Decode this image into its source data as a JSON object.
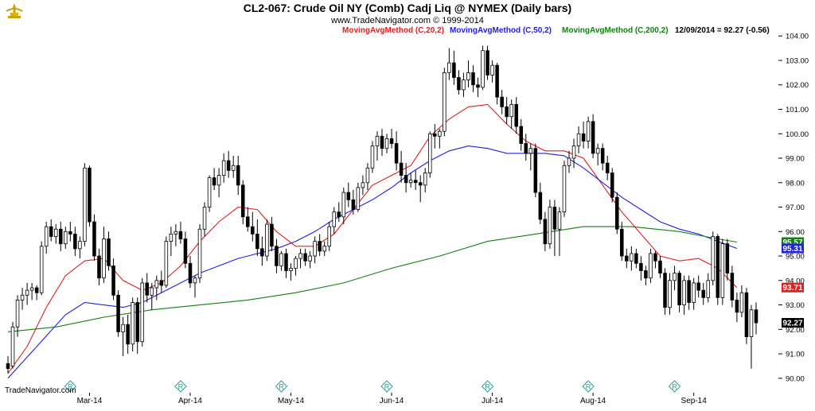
{
  "header": {
    "title": "CL2-067:  Crude Oil NY (Comb) Cadj Liq @ NYMEX  (Daily bars)",
    "copyright": "www.TradeNavigator.com © 1999-2014"
  },
  "legend": [
    {
      "label": "MovingAvgMethod (C,20,2)",
      "color": "#e02020"
    },
    {
      "label": "MovingAvgMethod (C,50,2)",
      "color": "#2020e0"
    },
    {
      "label": "MovingAvgMethod (C,200,2)",
      "color": "#108010"
    },
    {
      "label": "12/09/2014 = 92.27 (-0.56)",
      "color": "#000000"
    }
  ],
  "footer": {
    "brand": "TradeNavigator.com"
  },
  "markers": {
    "symbol": "R",
    "color": "#2aa198"
  },
  "chart_data": {
    "type": "candlestick",
    "title": "CL2-067:  Crude Oil NY (Comb) Cadj Liq @ NYMEX  (Daily bars)",
    "ylim": [
      89.8,
      104.3
    ],
    "y_ticks": [
      "90.00",
      "91.00",
      "92.00",
      "93.00",
      "94.00",
      "95.00",
      "96.00",
      "97.00",
      "98.00",
      "99.00",
      "100.00",
      "101.00",
      "102.00",
      "103.00",
      "104.00"
    ],
    "x_labels": [
      {
        "label": "Mar-14",
        "index": 17
      },
      {
        "label": "Apr-14",
        "index": 38
      },
      {
        "label": "May-14",
        "index": 59
      },
      {
        "label": "Jun-14",
        "index": 80
      },
      {
        "label": "Jul-14",
        "index": 101
      },
      {
        "label": "Aug-14",
        "index": 122
      },
      {
        "label": "Sep-14",
        "index": 143
      }
    ],
    "series": [
      {
        "name": "MovingAvgMethod (C,20,2)",
        "color": "#e02020",
        "last": 93.71,
        "values": [
          [
            0,
            90.2
          ],
          [
            4,
            91.3
          ],
          [
            8,
            92.9
          ],
          [
            12,
            94.2
          ],
          [
            16,
            94.8
          ],
          [
            20,
            94.9
          ],
          [
            24,
            94.0
          ],
          [
            28,
            93.6
          ],
          [
            32,
            93.9
          ],
          [
            36,
            94.6
          ],
          [
            40,
            95.6
          ],
          [
            44,
            96.4
          ],
          [
            48,
            97.0
          ],
          [
            52,
            96.9
          ],
          [
            56,
            96.0
          ],
          [
            60,
            95.4
          ],
          [
            64,
            95.4
          ],
          [
            68,
            95.9
          ],
          [
            72,
            96.9
          ],
          [
            76,
            97.9
          ],
          [
            80,
            98.3
          ],
          [
            84,
            98.7
          ],
          [
            88,
            99.9
          ],
          [
            92,
            100.6
          ],
          [
            96,
            101.1
          ],
          [
            100,
            101.2
          ],
          [
            104,
            100.4
          ],
          [
            108,
            99.7
          ],
          [
            112,
            99.3
          ],
          [
            116,
            99.3
          ],
          [
            120,
            99.0
          ],
          [
            124,
            97.9
          ],
          [
            128,
            96.8
          ],
          [
            132,
            95.9
          ],
          [
            136,
            95.0
          ],
          [
            140,
            94.8
          ],
          [
            144,
            94.9
          ],
          [
            148,
            94.5
          ],
          [
            152,
            93.71
          ]
        ]
      },
      {
        "name": "MovingAvgMethod (C,50,2)",
        "color": "#2020e0",
        "last": 95.31,
        "values": [
          [
            0,
            90.0
          ],
          [
            6,
            91.3
          ],
          [
            12,
            92.6
          ],
          [
            16,
            93.1
          ],
          [
            20,
            93.0
          ],
          [
            24,
            92.9
          ],
          [
            28,
            93.1
          ],
          [
            32,
            93.5
          ],
          [
            36,
            93.9
          ],
          [
            40,
            94.3
          ],
          [
            44,
            94.6
          ],
          [
            48,
            94.9
          ],
          [
            52,
            95.1
          ],
          [
            56,
            95.3
          ],
          [
            60,
            95.6
          ],
          [
            64,
            96.0
          ],
          [
            68,
            96.5
          ],
          [
            72,
            96.9
          ],
          [
            76,
            97.3
          ],
          [
            80,
            97.8
          ],
          [
            84,
            98.4
          ],
          [
            88,
            98.9
          ],
          [
            92,
            99.3
          ],
          [
            96,
            99.5
          ],
          [
            100,
            99.4
          ],
          [
            104,
            99.2
          ],
          [
            108,
            99.2
          ],
          [
            112,
            99.2
          ],
          [
            116,
            99.1
          ],
          [
            120,
            98.6
          ],
          [
            124,
            98.0
          ],
          [
            128,
            97.4
          ],
          [
            132,
            96.9
          ],
          [
            136,
            96.4
          ],
          [
            140,
            96.1
          ],
          [
            144,
            95.9
          ],
          [
            148,
            95.6
          ],
          [
            152,
            95.31
          ]
        ]
      },
      {
        "name": "MovingAvgMethod (C,200,2)",
        "color": "#108010",
        "last": 95.57,
        "values": [
          [
            0,
            91.9
          ],
          [
            10,
            92.1
          ],
          [
            20,
            92.5
          ],
          [
            30,
            92.8
          ],
          [
            40,
            93.0
          ],
          [
            50,
            93.2
          ],
          [
            60,
            93.5
          ],
          [
            70,
            93.9
          ],
          [
            80,
            94.5
          ],
          [
            90,
            95.0
          ],
          [
            100,
            95.6
          ],
          [
            110,
            95.9
          ],
          [
            120,
            96.2
          ],
          [
            130,
            96.2
          ],
          [
            140,
            96.0
          ],
          [
            148,
            95.7
          ],
          [
            152,
            95.57
          ]
        ]
      }
    ],
    "candles_ohlc": [
      [
        90.6,
        90.9,
        90.2,
        90.4
      ],
      [
        90.5,
        92.3,
        90.4,
        92.1
      ],
      [
        92.1,
        93.4,
        91.7,
        93.2
      ],
      [
        93.2,
        93.7,
        92.8,
        93.4
      ],
      [
        93.4,
        93.9,
        93.0,
        93.6
      ],
      [
        93.6,
        93.9,
        93.2,
        93.7
      ],
      [
        93.7,
        93.8,
        93.2,
        93.5
      ],
      [
        93.5,
        95.6,
        93.4,
        95.4
      ],
      [
        95.4,
        96.4,
        95.1,
        96.2
      ],
      [
        96.2,
        96.5,
        95.6,
        95.8
      ],
      [
        95.8,
        96.3,
        95.5,
        96.1
      ],
      [
        96.1,
        96.4,
        95.2,
        95.5
      ],
      [
        95.5,
        96.2,
        95.3,
        96.0
      ],
      [
        96.0,
        96.4,
        95.6,
        95.9
      ],
      [
        95.9,
        96.2,
        95.0,
        95.3
      ],
      [
        95.3,
        95.8,
        94.9,
        95.6
      ],
      [
        95.6,
        98.8,
        95.4,
        98.6
      ],
      [
        98.6,
        98.7,
        96.2,
        96.4
      ],
      [
        96.4,
        96.7,
        94.8,
        95.0
      ],
      [
        95.0,
        95.3,
        93.8,
        94.1
      ],
      [
        94.1,
        96.2,
        93.9,
        95.7
      ],
      [
        95.7,
        96.0,
        94.4,
        94.6
      ],
      [
        94.6,
        94.9,
        93.2,
        93.4
      ],
      [
        93.4,
        93.6,
        91.7,
        91.9
      ],
      [
        91.9,
        92.5,
        90.9,
        92.2
      ],
      [
        92.2,
        92.6,
        91.0,
        91.4
      ],
      [
        91.4,
        93.3,
        91.1,
        93.1
      ],
      [
        93.1,
        93.3,
        91.0,
        91.5
      ],
      [
        91.5,
        94.1,
        91.3,
        93.9
      ],
      [
        93.9,
        94.3,
        93.1,
        93.4
      ],
      [
        93.4,
        93.9,
        92.8,
        93.7
      ],
      [
        93.7,
        94.2,
        93.2,
        94.0
      ],
      [
        94.0,
        94.4,
        93.5,
        93.8
      ],
      [
        93.8,
        95.8,
        93.7,
        95.6
      ],
      [
        95.6,
        96.2,
        95.0,
        95.9
      ],
      [
        95.9,
        96.3,
        95.4,
        96.0
      ],
      [
        96.0,
        96.4,
        95.5,
        95.7
      ],
      [
        95.7,
        96.0,
        94.5,
        94.7
      ],
      [
        94.7,
        95.0,
        93.7,
        93.9
      ],
      [
        93.9,
        94.2,
        93.3,
        94.1
      ],
      [
        94.1,
        96.3,
        93.9,
        96.1
      ],
      [
        96.1,
        97.2,
        95.8,
        97.0
      ],
      [
        97.0,
        98.3,
        96.8,
        98.2
      ],
      [
        98.2,
        98.6,
        97.7,
        97.9
      ],
      [
        97.9,
        98.6,
        97.4,
        98.3
      ],
      [
        98.3,
        99.2,
        98.0,
        98.9
      ],
      [
        98.9,
        99.3,
        98.2,
        98.5
      ],
      [
        98.5,
        99.1,
        98.2,
        98.7
      ],
      [
        98.7,
        99.1,
        97.5,
        97.9
      ],
      [
        97.9,
        98.1,
        96.3,
        96.6
      ],
      [
        96.6,
        97.0,
        96.0,
        96.2
      ],
      [
        96.2,
        96.8,
        95.6,
        95.9
      ],
      [
        95.9,
        96.5,
        95.0,
        95.3
      ],
      [
        95.3,
        95.8,
        94.6,
        95.0
      ],
      [
        95.0,
        96.5,
        94.8,
        96.3
      ],
      [
        96.3,
        96.6,
        95.2,
        95.4
      ],
      [
        95.4,
        95.7,
        94.3,
        94.6
      ],
      [
        94.6,
        95.2,
        94.4,
        95.1
      ],
      [
        95.1,
        95.3,
        94.1,
        94.4
      ],
      [
        94.4,
        94.7,
        94.0,
        94.5
      ],
      [
        94.5,
        95.0,
        94.2,
        94.9
      ],
      [
        94.9,
        95.3,
        94.5,
        95.1
      ],
      [
        95.1,
        95.3,
        94.6,
        94.8
      ],
      [
        94.8,
        95.2,
        94.5,
        95.0
      ],
      [
        95.0,
        95.8,
        94.7,
        95.6
      ],
      [
        95.6,
        95.9,
        95.0,
        95.2
      ],
      [
        95.2,
        95.6,
        95.0,
        95.4
      ],
      [
        95.4,
        96.4,
        95.2,
        96.2
      ],
      [
        96.2,
        97.0,
        95.9,
        96.8
      ],
      [
        96.8,
        97.2,
        96.4,
        96.6
      ],
      [
        96.6,
        97.8,
        96.3,
        97.6
      ],
      [
        97.6,
        98.0,
        97.0,
        97.3
      ],
      [
        97.3,
        97.7,
        96.7,
        96.9
      ],
      [
        96.9,
        98.0,
        96.8,
        97.8
      ],
      [
        97.8,
        98.3,
        97.5,
        98.0
      ],
      [
        98.0,
        98.8,
        97.7,
        98.6
      ],
      [
        98.6,
        99.7,
        98.4,
        99.5
      ],
      [
        99.5,
        100.1,
        98.9,
        99.9
      ],
      [
        99.9,
        100.2,
        99.1,
        99.4
      ],
      [
        99.4,
        100.0,
        99.2,
        99.8
      ],
      [
        99.8,
        100.2,
        99.4,
        99.6
      ],
      [
        99.6,
        100.1,
        98.5,
        98.8
      ],
      [
        98.8,
        99.3,
        98.0,
        98.3
      ],
      [
        98.3,
        98.8,
        97.6,
        98.0
      ],
      [
        98.0,
        98.4,
        97.8,
        98.1
      ],
      [
        98.1,
        98.5,
        97.7,
        98.0
      ],
      [
        98.0,
        98.3,
        97.2,
        97.9
      ],
      [
        97.9,
        98.6,
        97.6,
        98.4
      ],
      [
        98.4,
        100.1,
        98.2,
        100.0
      ],
      [
        100.0,
        100.4,
        99.4,
        99.9
      ],
      [
        99.9,
        100.2,
        99.4,
        100.1
      ],
      [
        100.1,
        102.7,
        99.9,
        102.5
      ],
      [
        102.5,
        103.5,
        102.2,
        102.9
      ],
      [
        102.9,
        103.4,
        102.0,
        102.3
      ],
      [
        102.3,
        102.6,
        101.6,
        101.8
      ],
      [
        101.8,
        102.5,
        101.5,
        102.2
      ],
      [
        102.2,
        103.0,
        101.9,
        102.5
      ],
      [
        102.5,
        102.8,
        101.7,
        102.0
      ],
      [
        102.0,
        102.3,
        101.5,
        101.9
      ],
      [
        101.9,
        103.6,
        101.8,
        103.4
      ],
      [
        103.4,
        103.6,
        102.2,
        102.4
      ],
      [
        102.4,
        103.0,
        102.1,
        102.8
      ],
      [
        102.8,
        102.9,
        101.2,
        101.5
      ],
      [
        101.5,
        101.8,
        100.8,
        101.1
      ],
      [
        101.1,
        101.5,
        100.4,
        100.7
      ],
      [
        100.7,
        101.4,
        100.2,
        101.2
      ],
      [
        101.2,
        101.5,
        100.0,
        100.3
      ],
      [
        100.3,
        100.6,
        99.3,
        99.6
      ],
      [
        99.6,
        100.0,
        98.9,
        99.2
      ],
      [
        99.2,
        99.6,
        98.5,
        99.4
      ],
      [
        99.4,
        99.6,
        97.4,
        97.6
      ],
      [
        97.6,
        98.0,
        96.3,
        96.5
      ],
      [
        96.5,
        96.8,
        95.2,
        95.5
      ],
      [
        95.5,
        97.3,
        95.3,
        97.0
      ],
      [
        97.0,
        97.3,
        95.0,
        96.1
      ],
      [
        96.1,
        97.0,
        95.0,
        96.8
      ],
      [
        96.8,
        98.9,
        96.6,
        98.7
      ],
      [
        98.7,
        99.3,
        98.4,
        99.0
      ],
      [
        99.0,
        99.8,
        98.6,
        99.5
      ],
      [
        99.5,
        100.3,
        99.2,
        100.0
      ],
      [
        100.0,
        100.5,
        99.4,
        99.7
      ],
      [
        99.7,
        100.7,
        99.4,
        100.5
      ],
      [
        100.5,
        100.8,
        99.0,
        99.2
      ],
      [
        99.2,
        99.6,
        98.7,
        99.4
      ],
      [
        99.4,
        99.6,
        98.5,
        98.8
      ],
      [
        98.8,
        99.1,
        98.1,
        98.4
      ],
      [
        98.4,
        98.6,
        97.2,
        97.4
      ],
      [
        97.4,
        97.6,
        95.9,
        96.1
      ],
      [
        96.1,
        96.4,
        94.8,
        95.0
      ],
      [
        95.0,
        95.3,
        94.5,
        94.8
      ],
      [
        94.8,
        95.4,
        94.4,
        95.1
      ],
      [
        95.1,
        95.3,
        94.5,
        94.7
      ],
      [
        94.7,
        95.0,
        94.0,
        94.4
      ],
      [
        94.4,
        94.6,
        93.8,
        94.1
      ],
      [
        94.1,
        95.3,
        93.9,
        95.1
      ],
      [
        95.1,
        95.2,
        94.5,
        94.8
      ],
      [
        94.8,
        95.0,
        94.1,
        94.3
      ],
      [
        94.3,
        94.5,
        92.6,
        92.9
      ],
      [
        92.9,
        94.3,
        92.6,
        94.0
      ],
      [
        94.0,
        94.6,
        93.6,
        94.3
      ],
      [
        94.3,
        94.4,
        92.7,
        93.0
      ],
      [
        93.0,
        94.2,
        92.6,
        94.0
      ],
      [
        94.0,
        94.2,
        92.8,
        93.1
      ],
      [
        93.1,
        94.1,
        92.8,
        93.9
      ],
      [
        93.9,
        94.2,
        93.3,
        93.6
      ],
      [
        93.6,
        93.9,
        93.0,
        93.3
      ],
      [
        93.3,
        94.3,
        93.1,
        94.0
      ],
      [
        94.0,
        96.0,
        93.8,
        95.8
      ],
      [
        95.8,
        95.9,
        93.0,
        93.3
      ],
      [
        93.3,
        95.7,
        93.0,
        95.5
      ],
      [
        95.5,
        95.7,
        94.0,
        94.3
      ],
      [
        94.3,
        94.6,
        92.9,
        93.2
      ],
      [
        93.2,
        93.5,
        92.3,
        92.7
      ],
      [
        92.7,
        93.8,
        92.5,
        93.5
      ],
      [
        93.5,
        93.7,
        91.4,
        91.7
      ],
      [
        91.7,
        93.0,
        90.4,
        92.8
      ],
      [
        92.8,
        93.1,
        91.8,
        92.27
      ]
    ]
  },
  "price_tags": [
    {
      "label": "95.57",
      "value": 95.57,
      "color": "#108010"
    },
    {
      "label": "95.31",
      "value": 95.31,
      "color": "#2020e0"
    },
    {
      "label": "93.71",
      "value": 93.71,
      "color": "#e02020"
    },
    {
      "label": "92.27",
      "value": 92.27,
      "color": "#000000"
    }
  ]
}
